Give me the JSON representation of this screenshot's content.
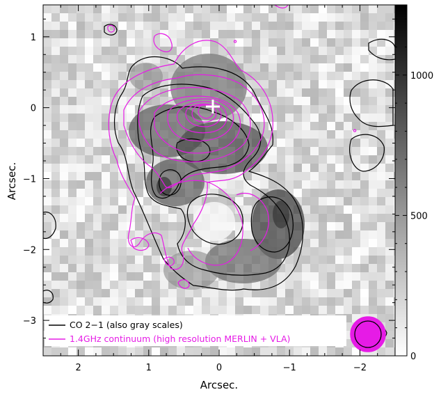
{
  "chart_data": {
    "type": "heatmap",
    "title": "",
    "xlabel": "Arcsec.",
    "ylabel": "Arcsec.",
    "x_reversed": true,
    "xlim": [
      2.5,
      -2.5
    ],
    "ylim": [
      -3.5,
      1.45
    ],
    "x_ticks": [
      2,
      1,
      0,
      -1,
      -2
    ],
    "x_tick_labels": [
      "2",
      "1",
      "0",
      "−1",
      "−2"
    ],
    "y_ticks": [
      1,
      0,
      -1,
      -2,
      -3
    ],
    "y_tick_labels": [
      "1",
      "0",
      "−1",
      "−2",
      "−3"
    ],
    "colorbar": {
      "range": [
        0,
        1250
      ],
      "ticks": [
        0,
        500,
        1000
      ],
      "tick_labels": [
        "0",
        "500",
        "1000"
      ],
      "colormap": "gray"
    },
    "legend": {
      "placement": "bottom-left",
      "entries": [
        {
          "label": "CO 2−1 (also gray scales)",
          "color": "#000000"
        },
        {
          "label": "1.4GHz continuum (high resolution MERLIN + VLA)",
          "color": "#e61be6"
        }
      ]
    },
    "marker": {
      "type": "plus",
      "x": 0.07,
      "y": 0.03,
      "color": "#ffffff"
    },
    "beam": {
      "x": -2.13,
      "y": -3.18,
      "continuum_radius": 0.25,
      "co_radius": 0.2,
      "color": "#e61be6"
    },
    "colors": {
      "co": "#000000",
      "continuum": "#e61be6"
    }
  }
}
